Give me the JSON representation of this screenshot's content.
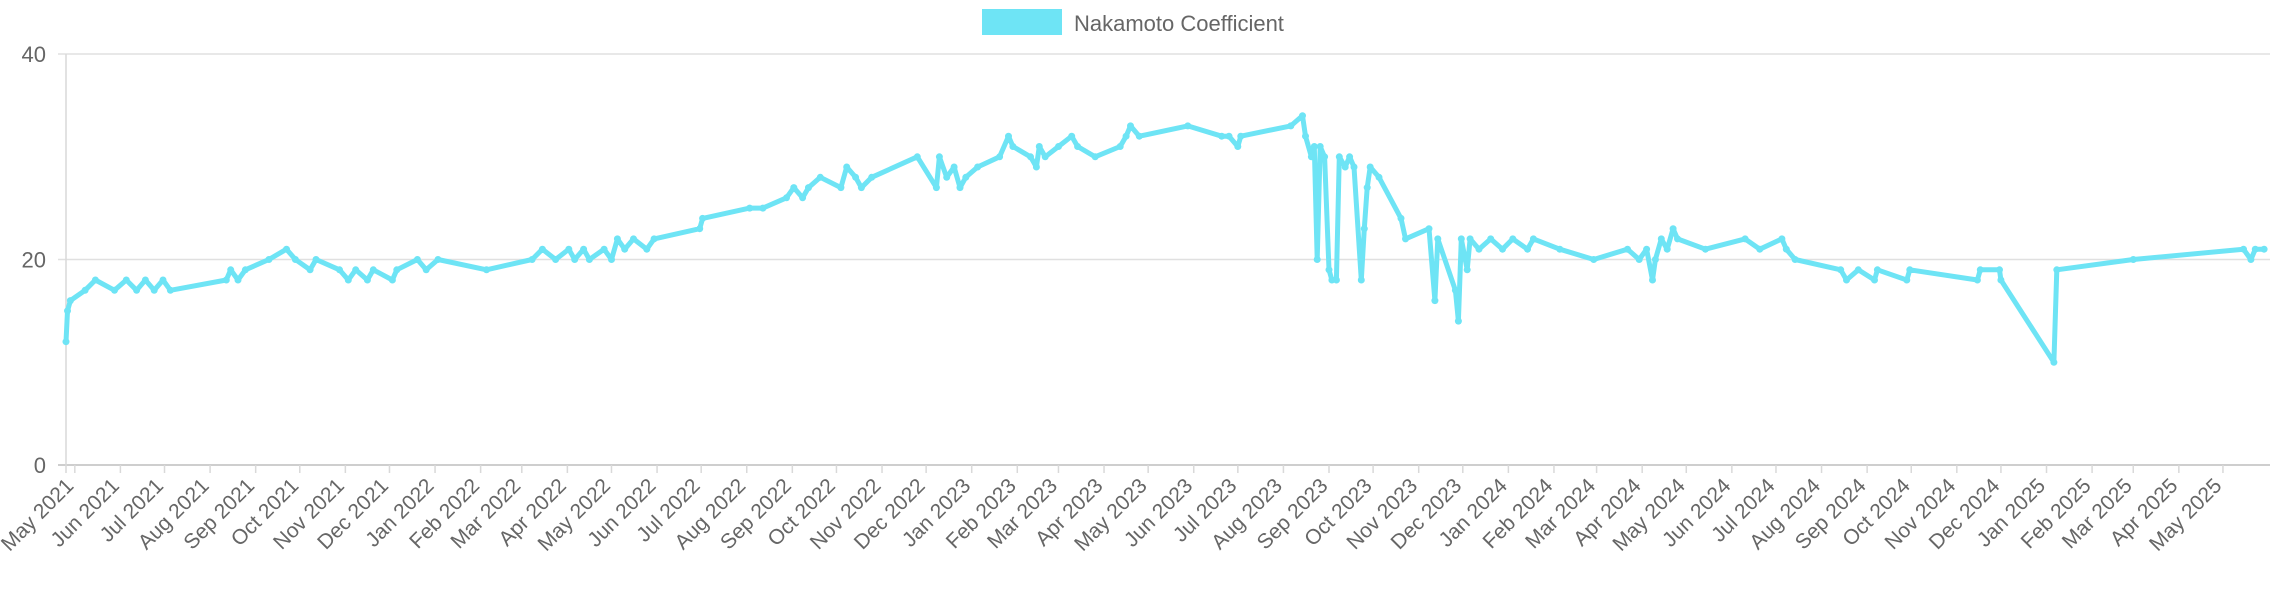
{
  "chart_data": {
    "type": "line",
    "title": "",
    "xlabel": "",
    "ylabel": "",
    "ylim": [
      0,
      40
    ],
    "yticks": [
      0,
      20,
      40
    ],
    "grid": true,
    "legend_position": "top-center",
    "x_tick_labels": [
      "May 2021",
      "Jun 2021",
      "Jul 2021",
      "Aug 2021",
      "Sep 2021",
      "Oct 2021",
      "Nov 2021",
      "Dec 2021",
      "Jan 2022",
      "Feb 2022",
      "Mar 2022",
      "Apr 2022",
      "May 2022",
      "Jun 2022",
      "Jul 2022",
      "Aug 2022",
      "Sep 2022",
      "Oct 2022",
      "Nov 2022",
      "Dec 2022",
      "Jan 2023",
      "Feb 2023",
      "Mar 2023",
      "Apr 2023",
      "May 2023",
      "Jun 2023",
      "Jul 2023",
      "Aug 2023",
      "Sep 2023",
      "Oct 2023",
      "Nov 2023",
      "Dec 2023",
      "Jan 2024",
      "Feb 2024",
      "Mar 2024",
      "Apr 2024",
      "May 2024",
      "Jun 2024",
      "Jul 2024",
      "Aug 2024",
      "Sep 2024",
      "Oct 2024",
      "Nov 2024",
      "Dec 2024",
      "Jan 2025",
      "Feb 2025",
      "Mar 2025",
      "Apr 2025",
      "May 2025"
    ],
    "series": [
      {
        "name": "Nakamoto Coefficient",
        "color": "#6ee4f5",
        "points": [
          [
            "2021-04-25",
            12
          ],
          [
            "2021-04-26",
            15
          ],
          [
            "2021-04-28",
            16
          ],
          [
            "2021-05-08",
            17
          ],
          [
            "2021-05-15",
            18
          ],
          [
            "2021-05-28",
            17
          ],
          [
            "2021-06-05",
            18
          ],
          [
            "2021-06-12",
            17
          ],
          [
            "2021-06-18",
            18
          ],
          [
            "2021-06-24",
            17
          ],
          [
            "2021-06-30",
            18
          ],
          [
            "2021-07-05",
            17
          ],
          [
            "2021-08-12",
            18
          ],
          [
            "2021-08-15",
            19
          ],
          [
            "2021-08-20",
            18
          ],
          [
            "2021-08-25",
            19
          ],
          [
            "2021-09-10",
            20
          ],
          [
            "2021-09-22",
            21
          ],
          [
            "2021-09-28",
            20
          ],
          [
            "2021-10-08",
            19
          ],
          [
            "2021-10-12",
            20
          ],
          [
            "2021-10-28",
            19
          ],
          [
            "2021-11-03",
            18
          ],
          [
            "2021-11-08",
            19
          ],
          [
            "2021-11-16",
            18
          ],
          [
            "2021-11-20",
            19
          ],
          [
            "2021-12-03",
            18
          ],
          [
            "2021-12-06",
            19
          ],
          [
            "2021-12-20",
            20
          ],
          [
            "2021-12-26",
            19
          ],
          [
            "2022-01-03",
            20
          ],
          [
            "2022-02-05",
            19
          ],
          [
            "2022-03-08",
            20
          ],
          [
            "2022-03-15",
            21
          ],
          [
            "2022-03-24",
            20
          ],
          [
            "2022-04-02",
            21
          ],
          [
            "2022-04-06",
            20
          ],
          [
            "2022-04-12",
            21
          ],
          [
            "2022-04-16",
            20
          ],
          [
            "2022-04-26",
            21
          ],
          [
            "2022-05-01",
            20
          ],
          [
            "2022-05-05",
            22
          ],
          [
            "2022-05-10",
            21
          ],
          [
            "2022-05-16",
            22
          ],
          [
            "2022-05-25",
            21
          ],
          [
            "2022-05-30",
            22
          ],
          [
            "2022-06-30",
            23
          ],
          [
            "2022-07-02",
            24
          ],
          [
            "2022-08-03",
            25
          ],
          [
            "2022-08-12",
            25
          ],
          [
            "2022-08-28",
            26
          ],
          [
            "2022-09-02",
            27
          ],
          [
            "2022-09-08",
            26
          ],
          [
            "2022-09-12",
            27
          ],
          [
            "2022-09-20",
            28
          ],
          [
            "2022-10-04",
            27
          ],
          [
            "2022-10-08",
            29
          ],
          [
            "2022-10-14",
            28
          ],
          [
            "2022-10-18",
            27
          ],
          [
            "2022-10-25",
            28
          ],
          [
            "2022-11-25",
            30
          ],
          [
            "2022-12-08",
            27
          ],
          [
            "2022-12-10",
            30
          ],
          [
            "2022-12-15",
            28
          ],
          [
            "2022-12-20",
            29
          ],
          [
            "2022-12-24",
            27
          ],
          [
            "2022-12-28",
            28
          ],
          [
            "2023-01-05",
            29
          ],
          [
            "2023-01-20",
            30
          ],
          [
            "2023-01-26",
            32
          ],
          [
            "2023-01-29",
            31
          ],
          [
            "2023-02-10",
            30
          ],
          [
            "2023-02-14",
            29
          ],
          [
            "2023-02-16",
            31
          ],
          [
            "2023-02-20",
            30
          ],
          [
            "2023-03-01",
            31
          ],
          [
            "2023-03-10",
            32
          ],
          [
            "2023-03-14",
            31
          ],
          [
            "2023-03-26",
            30
          ],
          [
            "2023-04-12",
            31
          ],
          [
            "2023-04-16",
            32
          ],
          [
            "2023-04-19",
            33
          ],
          [
            "2023-04-25",
            32
          ],
          [
            "2023-05-28",
            33
          ],
          [
            "2023-06-20",
            32
          ],
          [
            "2023-06-25",
            32
          ],
          [
            "2023-07-01",
            31
          ],
          [
            "2023-07-03",
            32
          ],
          [
            "2023-08-06",
            33
          ],
          [
            "2023-08-14",
            34
          ],
          [
            "2023-08-16",
            32
          ],
          [
            "2023-08-20",
            30
          ],
          [
            "2023-08-22",
            31
          ],
          [
            "2023-08-24",
            20
          ],
          [
            "2023-08-26",
            31
          ],
          [
            "2023-08-29",
            30
          ],
          [
            "2023-09-01",
            19
          ],
          [
            "2023-09-03",
            18
          ],
          [
            "2023-09-06",
            18
          ],
          [
            "2023-09-08",
            30
          ],
          [
            "2023-09-12",
            29
          ],
          [
            "2023-09-15",
            30
          ],
          [
            "2023-09-18",
            29
          ],
          [
            "2023-09-23",
            18
          ],
          [
            "2023-09-25",
            23
          ],
          [
            "2023-09-27",
            27
          ],
          [
            "2023-09-29",
            29
          ],
          [
            "2023-10-05",
            28
          ],
          [
            "2023-10-20",
            24
          ],
          [
            "2023-10-23",
            22
          ],
          [
            "2023-11-08",
            23
          ],
          [
            "2023-11-12",
            16
          ],
          [
            "2023-11-14",
            22
          ],
          [
            "2023-11-26",
            17
          ],
          [
            "2023-11-28",
            14
          ],
          [
            "2023-11-30",
            22
          ],
          [
            "2023-12-04",
            19
          ],
          [
            "2023-12-06",
            22
          ],
          [
            "2023-12-12",
            21
          ],
          [
            "2023-12-20",
            22
          ],
          [
            "2023-12-28",
            21
          ],
          [
            "2024-01-04",
            22
          ],
          [
            "2024-01-14",
            21
          ],
          [
            "2024-01-18",
            22
          ],
          [
            "2024-02-05",
            21
          ],
          [
            "2024-02-28",
            20
          ],
          [
            "2024-03-22",
            21
          ],
          [
            "2024-03-30",
            20
          ],
          [
            "2024-04-04",
            21
          ],
          [
            "2024-04-08",
            18
          ],
          [
            "2024-04-10",
            20
          ],
          [
            "2024-04-14",
            22
          ],
          [
            "2024-04-18",
            21
          ],
          [
            "2024-04-22",
            23
          ],
          [
            "2024-04-25",
            22
          ],
          [
            "2024-05-14",
            21
          ],
          [
            "2024-06-10",
            22
          ],
          [
            "2024-06-20",
            21
          ],
          [
            "2024-07-05",
            22
          ],
          [
            "2024-07-08",
            21
          ],
          [
            "2024-07-14",
            20
          ],
          [
            "2024-08-14",
            19
          ],
          [
            "2024-08-18",
            18
          ],
          [
            "2024-08-26",
            19
          ],
          [
            "2024-09-06",
            18
          ],
          [
            "2024-09-08",
            19
          ],
          [
            "2024-09-28",
            18
          ],
          [
            "2024-09-30",
            19
          ],
          [
            "2024-11-15",
            18
          ],
          [
            "2024-11-17",
            19
          ],
          [
            "2024-11-30",
            19
          ],
          [
            "2024-12-01",
            18
          ],
          [
            "2025-01-06",
            10
          ],
          [
            "2025-01-08",
            19
          ],
          [
            "2025-03-01",
            20
          ],
          [
            "2025-05-15",
            21
          ],
          [
            "2025-05-20",
            20
          ],
          [
            "2025-05-23",
            21
          ],
          [
            "2025-05-29",
            21
          ]
        ]
      }
    ]
  }
}
